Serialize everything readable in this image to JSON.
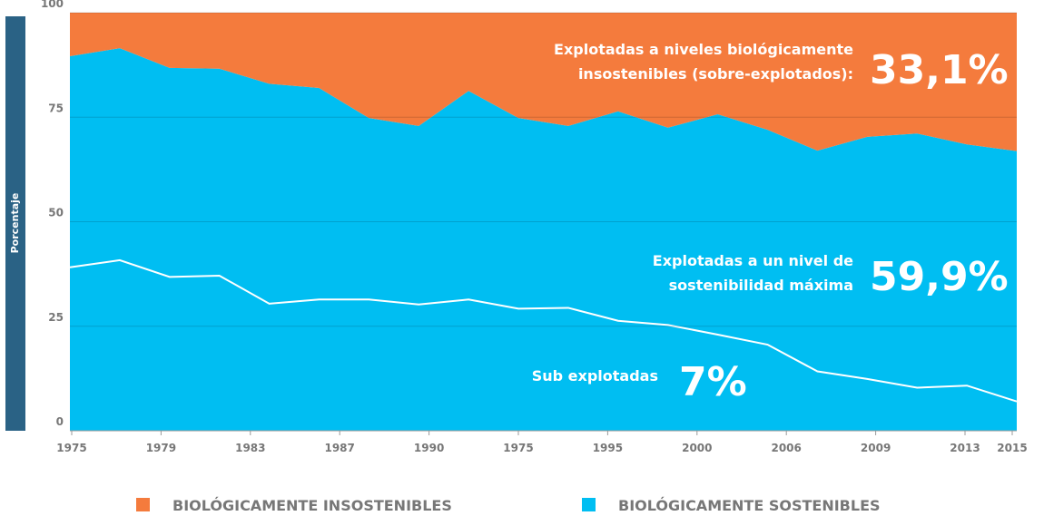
{
  "chart_data": {
    "type": "area",
    "ylabel": "Porcentaje",
    "ylim": [
      0,
      100
    ],
    "yticks": [
      0,
      25,
      50,
      75,
      100
    ],
    "grid": true,
    "xticks": [
      "1975",
      "1979",
      "1983",
      "1987",
      "1990",
      "1975",
      "1995",
      "2000",
      "2006",
      "2009",
      "2013",
      "2015"
    ],
    "series": [
      {
        "name": "BIOLÓGICAMENTE INSOSTENIBLES",
        "color": "#f47b3d",
        "values": [
          10.4,
          8.5,
          13.2,
          13.4,
          17,
          18,
          25.2,
          27.1,
          18.7,
          25.2,
          27.1,
          23.6,
          27.5,
          24.3,
          28,
          33,
          29.7,
          28.9,
          31.5,
          33.1
        ]
      },
      {
        "name": "BIOLÓGICAMENTE SOSTENIBLES",
        "color": "#00bef2",
        "values": [
          89.6,
          91.5,
          86.8,
          86.6,
          83,
          82,
          74.8,
          72.9,
          81.3,
          74.8,
          72.9,
          76.4,
          72.5,
          75.7,
          72,
          67,
          70.3,
          71.1,
          68.5,
          66.9
        ]
      }
    ],
    "line": {
      "color": "#ffffff",
      "values": [
        39.1,
        40.8,
        36.8,
        37.1,
        30.4,
        31.4,
        31.4,
        30.2,
        31.4,
        29.2,
        29.4,
        26.3,
        25.3,
        23,
        20.6,
        14.2,
        12.4,
        10.3,
        10.8,
        7
      ]
    },
    "annotations": [
      {
        "lines": [
          "Explotadas a niveles biológicamente",
          "insostenibles (sobre-explotados):"
        ],
        "value": 33.1,
        "value_label": "33,1%"
      },
      {
        "lines": [
          "Explotadas a un nivel de",
          "sostenibilidad máxima"
        ],
        "value": 59.9,
        "value_label": "59,9%"
      },
      {
        "lines": [
          "Sub explotadas"
        ],
        "value": 7,
        "value_label": "7%"
      }
    ],
    "legend": "bottom"
  }
}
